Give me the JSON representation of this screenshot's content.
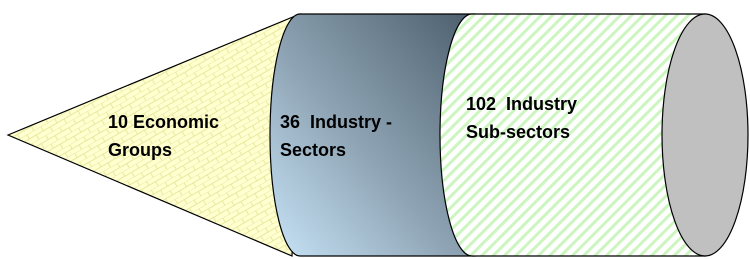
{
  "nodes": [
    {
      "label": [
        "10 Economic",
        "Groups"
      ]
    },
    {
      "label": [
        "36  Industry -",
        "Sectors"
      ]
    },
    {
      "label": [
        "102  Industry",
        "Sub-sectors"
      ]
    }
  ]
}
